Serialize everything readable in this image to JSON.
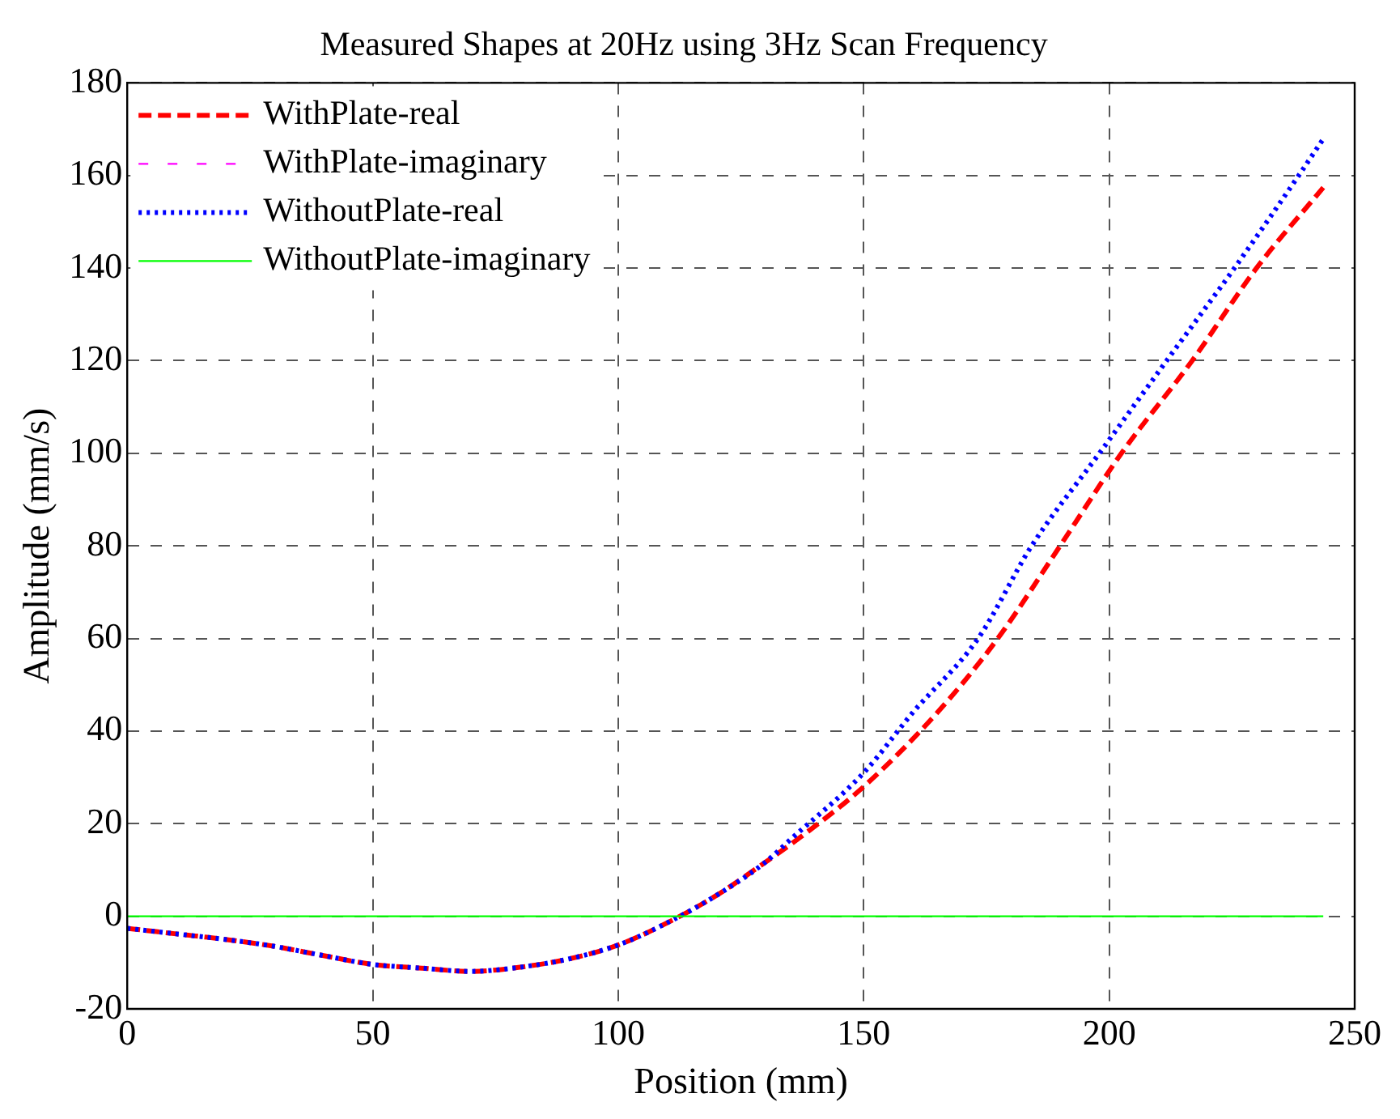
{
  "chart_data": {
    "type": "line",
    "title": "Measured Shapes at 20Hz using 3Hz Scan Frequency",
    "xlabel": "Position (mm)",
    "ylabel": "Amplitude (mm/s)",
    "xlim": [
      0,
      250
    ],
    "xticks": [
      0,
      50,
      100,
      150,
      200,
      250
    ],
    "ylim": [
      -20,
      180
    ],
    "yticks": [
      -20,
      0,
      20,
      40,
      60,
      80,
      100,
      120,
      140,
      160,
      180
    ],
    "grid": true,
    "legend": "top left",
    "marker": "none",
    "series": [
      {
        "name": "WithPlate-real",
        "color": "#ff0000",
        "line_style": "dashed",
        "x": [
          0,
          10,
          20,
          30,
          40,
          50,
          60,
          70,
          80,
          90,
          100,
          110,
          120,
          130,
          137,
          150,
          165,
          177.3,
          190,
          202.5,
          216.9,
          230,
          243.6
        ],
        "values": [
          -2.6,
          -3.8,
          -5,
          -6.5,
          -8.5,
          -10.4,
          -11.2,
          -11.9,
          -11,
          -9.2,
          -6.2,
          -1.4,
          4.5,
          11.7,
          17,
          28,
          44,
          60,
          80,
          100,
          120,
          140,
          157.4
        ]
      },
      {
        "name": "WithPlate-imaginary",
        "color": "#ff00ff",
        "line_style": "dashed"
      },
      {
        "name": "WithoutPlate-real",
        "color": "#0000ff",
        "line_style": "dotted",
        "x": [
          0,
          10,
          20,
          30,
          40,
          50,
          60,
          70,
          80,
          90,
          100,
          110,
          120,
          130,
          135,
          150,
          160,
          173.3,
          184.2,
          198,
          211.7,
          225.5,
          238.6,
          243.6
        ],
        "values": [
          -2.6,
          -3.8,
          -5,
          -6.5,
          -8.5,
          -10.4,
          -11.2,
          -11.9,
          -11,
          -9.2,
          -6.2,
          -1.4,
          4.5,
          11.7,
          16.5,
          31,
          44,
          60,
          80,
          100,
          120,
          140,
          160,
          167.9
        ]
      },
      {
        "name": "WithoutPlate-imaginary",
        "color": "#00ff00",
        "line_style": "solid",
        "x": [
          0,
          243.6
        ],
        "values": [
          0,
          0
        ]
      }
    ]
  }
}
